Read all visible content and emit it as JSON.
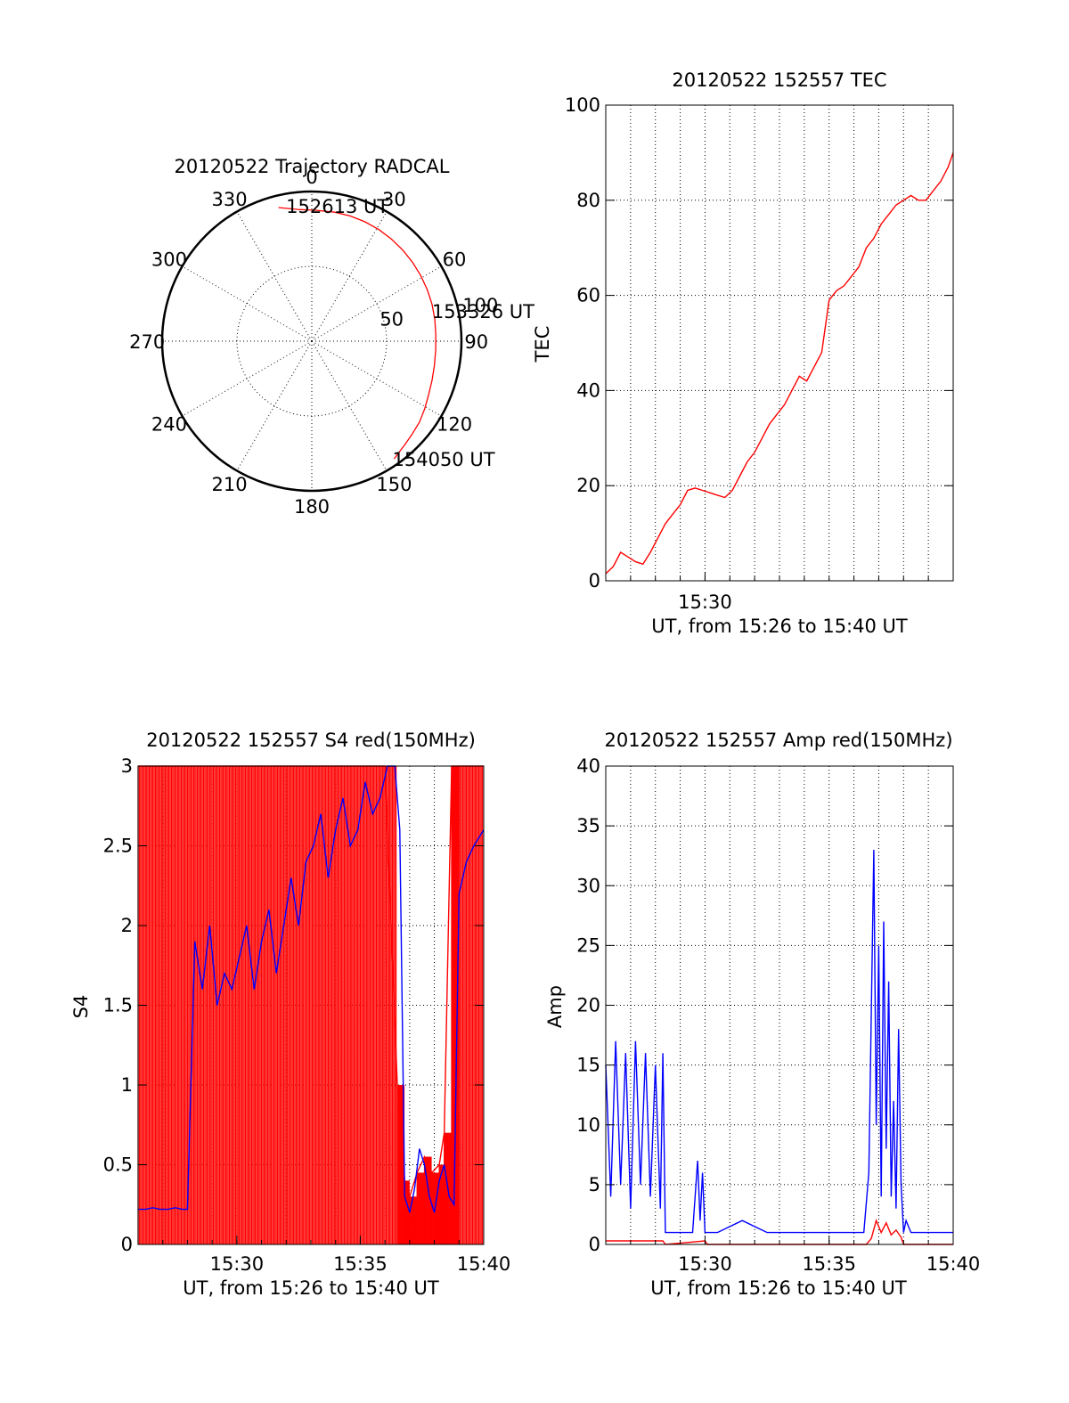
{
  "colors": {
    "red": "#ff0000",
    "blue": "#0000ff",
    "black": "#000000",
    "background": "#ffffff"
  },
  "chart_data": [
    {
      "id": "trajectory",
      "type": "scatter",
      "projection": "polar",
      "title": "20120522 Trajectory RADCAL",
      "r_range": [
        0,
        100
      ],
      "grid": true,
      "azimuth_ticks": [
        "0",
        "30",
        "60",
        "90",
        "120",
        "150",
        "180",
        "210",
        "240",
        "270",
        "300",
        "330"
      ],
      "radius_ticks": [
        "50",
        "100"
      ],
      "series": [
        {
          "color": "red",
          "azimuth": [
            346,
            354,
            2,
            10,
            17,
            24,
            31,
            38,
            45,
            52,
            59,
            66,
            73,
            80,
            87,
            94,
            101,
            108,
            115,
            121,
            127,
            133,
            138,
            142,
            145
          ],
          "radius": [
            92,
            88.5,
            87.5,
            87.5,
            87.5,
            87.3,
            87.0,
            86.5,
            86.0,
            85.5,
            85.0,
            84.5,
            84.0,
            83.5,
            83.0,
            83.0,
            83.5,
            84.5,
            86.0,
            88.0,
            90.0,
            91.5,
            93.0,
            94.5,
            96.0
          ]
        }
      ],
      "annotations": [
        {
          "text": "152613 UT",
          "azimuth": 350,
          "radius": 92
        },
        {
          "text": "153326 UT",
          "azimuth": 76,
          "radius": 84
        },
        {
          "text": "154050 UT",
          "azimuth": 145,
          "radius": 96
        }
      ]
    },
    {
      "id": "tec",
      "type": "line",
      "title": "20120522 152557 TEC",
      "xlabel": "UT, from 15:26 to 15:40 UT",
      "ylabel": "TEC",
      "xlim": [
        0,
        14
      ],
      "ylim": [
        0,
        100
      ],
      "x_ticks": [
        4
      ],
      "x_tick_labels": [
        "15:30"
      ],
      "y_ticks": [
        0,
        20,
        40,
        60,
        80,
        100
      ],
      "y_tick_labels": [
        "0",
        "20",
        "40",
        "60",
        "80",
        "100"
      ],
      "x_minor_grid": [
        1,
        2,
        3,
        4,
        5,
        6,
        7,
        8,
        9,
        10,
        11,
        12,
        13
      ],
      "grid": true,
      "series": [
        {
          "color": "red",
          "x": [
            0,
            0.3,
            0.6,
            0.9,
            1.2,
            1.5,
            1.8,
            2.1,
            2.4,
            2.7,
            3.0,
            3.3,
            3.6,
            3.9,
            4.2,
            4.5,
            4.8,
            5.1,
            5.4,
            5.7,
            6.0,
            6.3,
            6.6,
            6.9,
            7.2,
            7.5,
            7.8,
            8.1,
            8.4,
            8.7,
            9.0,
            9.3,
            9.6,
            9.9,
            10.2,
            10.5,
            10.8,
            11.1,
            11.4,
            11.7,
            12.0,
            12.3,
            12.6,
            12.9,
            13.2,
            13.5,
            13.8,
            14.0
          ],
          "y": [
            1.5,
            3,
            6,
            5,
            4,
            3.5,
            6,
            9,
            12,
            14,
            16,
            19,
            19.5,
            19,
            18.5,
            18,
            17.5,
            19,
            22,
            25,
            27,
            30,
            33,
            35,
            37,
            40,
            43,
            42,
            45,
            48,
            59,
            61,
            62,
            64,
            66,
            70,
            72,
            75,
            77,
            79,
            80,
            81,
            80,
            80,
            82,
            84,
            87,
            90
          ]
        }
      ]
    },
    {
      "id": "s4",
      "type": "line",
      "title": "20120522 152557 S4 red(150MHz)",
      "xlabel": "UT, from 15:26 to 15:40 UT",
      "ylabel": "S4",
      "xlim": [
        0,
        14
      ],
      "ylim": [
        0,
        3
      ],
      "x_ticks": [
        4,
        9,
        14
      ],
      "x_tick_labels": [
        "15:30",
        "15:35",
        "15:40"
      ],
      "y_ticks": [
        0,
        0.5,
        1,
        1.5,
        2,
        2.5,
        3
      ],
      "y_tick_labels": [
        "0",
        "0.5",
        "1",
        "1.5",
        "2",
        "2.5",
        "3"
      ],
      "x_minor_grid": [
        1,
        2,
        3,
        4,
        5,
        6,
        7,
        8,
        9,
        10,
        11,
        12,
        13
      ],
      "grid": true,
      "series": [
        {
          "color": "red",
          "x": [
            0,
            0.5,
            1,
            1.5,
            2,
            2.5,
            3,
            3.5,
            4,
            4.5,
            5,
            5.5,
            6,
            6.5,
            7,
            7.5,
            8,
            8.5,
            9,
            9.5,
            10,
            10.5,
            10.8,
            11,
            11.3,
            11.6,
            11.9,
            12.2,
            12.4,
            12.7,
            13,
            13.5,
            14
          ],
          "y": [
            3,
            3,
            3,
            3,
            3,
            3,
            3,
            3,
            3,
            3,
            3,
            3,
            3,
            3,
            3,
            3,
            3,
            3,
            3,
            3,
            3,
            1.0,
            0.4,
            0.3,
            0.45,
            0.55,
            0.45,
            0.5,
            0.7,
            3,
            3,
            3,
            3
          ]
        },
        {
          "color": "blue",
          "x": [
            0,
            0.3,
            0.6,
            0.9,
            1.2,
            1.5,
            1.8,
            2.0,
            2.3,
            2.6,
            2.9,
            3.2,
            3.5,
            3.8,
            4.1,
            4.4,
            4.7,
            5.0,
            5.3,
            5.6,
            5.9,
            6.2,
            6.5,
            6.8,
            7.1,
            7.4,
            7.7,
            8.0,
            8.3,
            8.6,
            8.9,
            9.2,
            9.5,
            9.8,
            10.1,
            10.4,
            10.6,
            10.8,
            11.0,
            11.2,
            11.4,
            11.6,
            11.8,
            12.0,
            12.2,
            12.4,
            12.6,
            12.8,
            13.0,
            13.3,
            13.6,
            14.0
          ],
          "y": [
            0.22,
            0.22,
            0.23,
            0.22,
            0.22,
            0.23,
            0.22,
            0.22,
            1.9,
            1.6,
            2.0,
            1.5,
            1.7,
            1.6,
            1.8,
            2.0,
            1.6,
            1.9,
            2.1,
            1.7,
            2.0,
            2.3,
            2.0,
            2.4,
            2.5,
            2.7,
            2.3,
            2.6,
            2.8,
            2.5,
            2.6,
            2.9,
            2.7,
            2.8,
            3,
            3,
            2.6,
            0.3,
            0.2,
            0.35,
            0.6,
            0.5,
            0.3,
            0.2,
            0.4,
            0.5,
            0.3,
            0.25,
            2.2,
            2.4,
            2.5,
            2.6
          ]
        }
      ]
    },
    {
      "id": "amp",
      "type": "line",
      "title": "20120522 152557 Amp red(150MHz)",
      "xlabel": "UT, from 15:26 to 15:40 UT",
      "ylabel": "Amp",
      "xlim": [
        0,
        14
      ],
      "ylim": [
        0,
        40
      ],
      "x_ticks": [
        4,
        9,
        14
      ],
      "x_tick_labels": [
        "15:30",
        "15:35",
        "15:40"
      ],
      "y_ticks": [
        0,
        5,
        10,
        15,
        20,
        25,
        30,
        35,
        40
      ],
      "y_tick_labels": [
        "0",
        "5",
        "10",
        "15",
        "20",
        "25",
        "30",
        "35",
        "40"
      ],
      "x_minor_grid": [
        1,
        2,
        3,
        4,
        5,
        6,
        7,
        8,
        9,
        10,
        11,
        12,
        13
      ],
      "grid": true,
      "series": [
        {
          "color": "blue",
          "x": [
            0,
            0.2,
            0.4,
            0.6,
            0.8,
            1.0,
            1.2,
            1.4,
            1.6,
            1.8,
            2.0,
            2.2,
            2.3,
            2.4,
            3.0,
            3.5,
            3.7,
            3.8,
            3.9,
            4.0,
            4.1,
            4.5,
            5.5,
            6.5,
            7.5,
            8.5,
            9.5,
            10.4,
            10.6,
            10.8,
            10.9,
            11.0,
            11.1,
            11.2,
            11.3,
            11.4,
            11.5,
            11.6,
            11.7,
            11.8,
            11.9,
            12.0,
            12.1,
            12.3,
            12.6,
            13.0,
            13.5,
            14.0
          ],
          "y": [
            15,
            4,
            17,
            5,
            16,
            3,
            17,
            5,
            16,
            4,
            15,
            3,
            16,
            1,
            1,
            1,
            7,
            2,
            6,
            1,
            1,
            1,
            2,
            1,
            1,
            1,
            1,
            1,
            6,
            33,
            10,
            25,
            4,
            27,
            8,
            22,
            4,
            12,
            3,
            18,
            5,
            1,
            2,
            1,
            1,
            1,
            1,
            1
          ]
        },
        {
          "color": "red",
          "x": [
            0,
            2.3,
            2.4,
            4.0,
            4.1,
            10.5,
            10.7,
            10.9,
            11.1,
            11.3,
            11.5,
            11.7,
            11.9,
            12.0,
            14.0
          ],
          "y": [
            0.3,
            0.3,
            0,
            0.3,
            0,
            0,
            0.5,
            2.0,
            1.0,
            1.8,
            0.8,
            1.2,
            0.6,
            0,
            0
          ]
        }
      ]
    }
  ]
}
